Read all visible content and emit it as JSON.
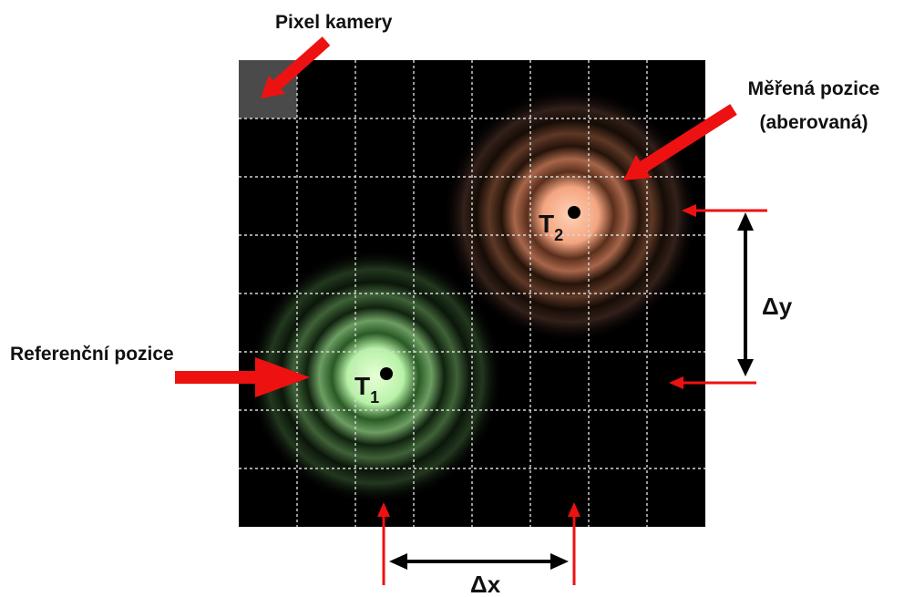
{
  "labels": {
    "camera_pixel": "Pixel kamery",
    "measured_line1": "Měřená pozice",
    "measured_line2": "(aberovaná)",
    "reference": "Referenční pozice",
    "delta_y": "Δy",
    "delta_x": "Δx"
  },
  "spots": {
    "reference": {
      "letter": "T",
      "subscript": "1",
      "color": "#b8f2a8"
    },
    "measured": {
      "letter": "T",
      "subscript": "2",
      "color": "#f4a580"
    }
  },
  "grid": {
    "columns": 8,
    "rows": 8,
    "background": "#000000",
    "line_color": "#d8d8d8",
    "highlighted_pixel_color": "#4a4a4a"
  },
  "colors": {
    "arrow_red": "#ee1111",
    "dimension_black": "#000000"
  }
}
